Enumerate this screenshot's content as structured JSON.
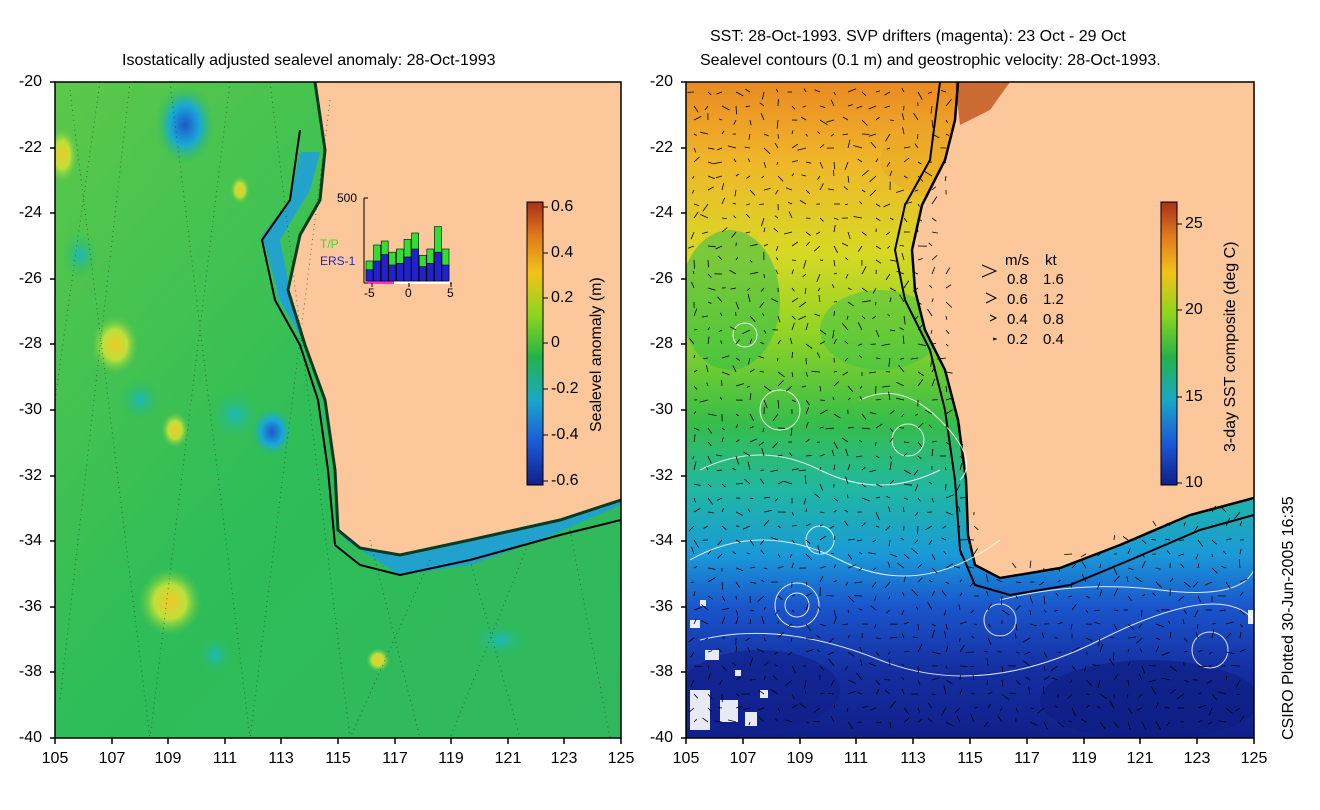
{
  "left_panel": {
    "title": "Isostatically adjusted sealevel anomaly: 28-Oct-1993",
    "y_ticks": [
      "-20",
      "-22",
      "-24",
      "-26",
      "-28",
      "-30",
      "-32",
      "-34",
      "-36",
      "-38",
      "-40"
    ],
    "x_ticks": [
      "105",
      "107",
      "109",
      "111",
      "113",
      "115",
      "117",
      "119",
      "121",
      "123",
      "125"
    ],
    "colorbar": {
      "label": "Sealevel anomaly (m)",
      "ticks": [
        "0.6",
        "0.4",
        "0.2",
        "0",
        "-0.2",
        "-0.4",
        "-0.6"
      ],
      "colors": [
        "#a8301a",
        "#e07a1c",
        "#f2c21a",
        "#8ad61e",
        "#23b34a",
        "#1aa8c8",
        "#1a5ad8",
        "#10208a"
      ]
    },
    "inset": {
      "y_tick": "500",
      "x_ticks": [
        "-5",
        "0",
        "5"
      ],
      "legend_tp": "T/P",
      "legend_ers": "ERS-1",
      "tp_color": "#33dd33",
      "ers_color": "#2222cc",
      "bars": [
        {
          "tp": 0.25,
          "ers": 0.14
        },
        {
          "tp": 0.45,
          "ers": 0.25
        },
        {
          "tp": 0.5,
          "ers": 0.33
        },
        {
          "tp": 0.36,
          "ers": 0.2
        },
        {
          "tp": 0.4,
          "ers": 0.22
        },
        {
          "tp": 0.52,
          "ers": 0.3
        },
        {
          "tp": 0.6,
          "ers": 0.4
        },
        {
          "tp": 0.32,
          "ers": 0.18
        },
        {
          "tp": 0.4,
          "ers": 0.22
        },
        {
          "tp": 0.68,
          "ers": 0.36
        },
        {
          "tp": 0.4,
          "ers": 0.2
        }
      ]
    }
  },
  "right_panel": {
    "title_line1": "SST: 28-Oct-1993. SVP drifters (magenta): 23 Oct - 29 Oct",
    "title_line2": "Sealevel contours (0.1 m) and geostrophic velocity: 28-Oct-1993.",
    "y_ticks": [
      "-20",
      "-22",
      "-24",
      "-26",
      "-28",
      "-30",
      "-32",
      "-34",
      "-36",
      "-38",
      "-40"
    ],
    "x_ticks": [
      "105",
      "107",
      "109",
      "111",
      "113",
      "115",
      "117",
      "119",
      "121",
      "123",
      "125"
    ],
    "colorbar": {
      "label": "3-day SST composite (deg C)",
      "ticks": [
        "25",
        "20",
        "15",
        "10"
      ],
      "colors": [
        "#a8301a",
        "#e07a1c",
        "#f2c21a",
        "#8ad61e",
        "#23b34a",
        "#1aa8c8",
        "#1a5ad8",
        "#10208a"
      ]
    },
    "velocity_legend": {
      "header_ms": "m/s",
      "header_kt": "kt",
      "rows": [
        {
          "ms": "0.8",
          "kt": "1.6"
        },
        {
          "ms": "0.6",
          "kt": "1.2"
        },
        {
          "ms": "0.4",
          "kt": "0.8"
        },
        {
          "ms": "0.2",
          "kt": "0.4"
        }
      ]
    }
  },
  "credit": "CSIRO Plotted 30-Jun-2005 16:35",
  "land_color": "#fcc89b"
}
